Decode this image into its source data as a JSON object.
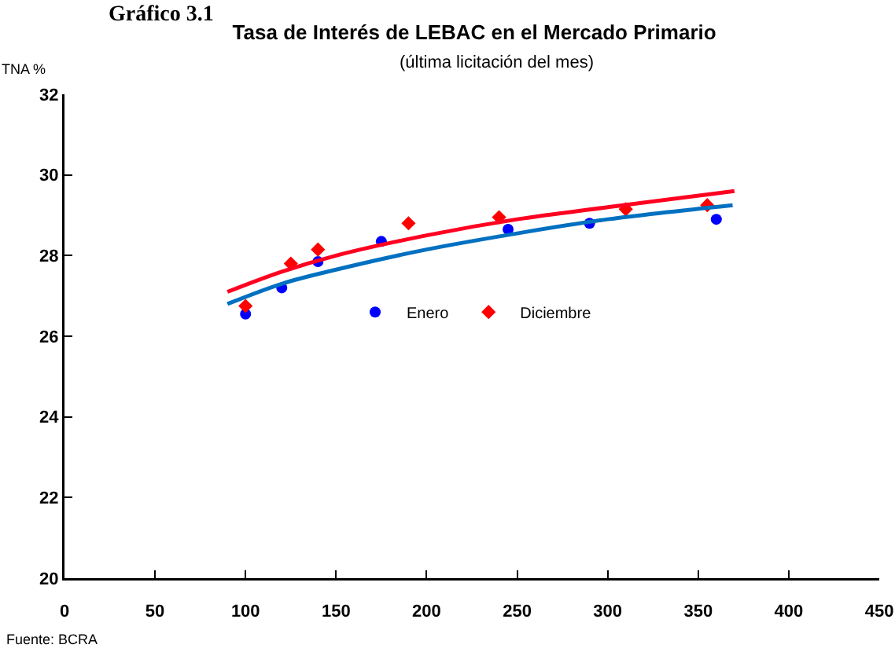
{
  "chart_data": {
    "type": "scatter",
    "title": "Tasa de Interés de LEBAC en el Mercado Primario",
    "subtitle": "(última licitación del mes)",
    "ylabel": "TNA %",
    "annotations": [
      "Gráfico 3.1",
      "Fuente: BCRA"
    ],
    "xlim": [
      0,
      450
    ],
    "xticks": [
      0,
      50,
      100,
      150,
      200,
      250,
      300,
      350,
      400,
      450
    ],
    "ylim": [
      20,
      32
    ],
    "yticks": [
      20,
      22,
      24,
      26,
      28,
      30,
      32
    ],
    "grid": false,
    "legend": "center",
    "series": [
      {
        "name": "Enero",
        "type": "scatter",
        "marker": "circle",
        "color": "#0000ff",
        "x": [
          100,
          120,
          140,
          175,
          245,
          290,
          360
        ],
        "values": [
          26.55,
          27.2,
          27.85,
          28.35,
          28.65,
          28.8,
          28.9
        ]
      },
      {
        "name": "Diciembre",
        "type": "scatter",
        "marker": "diamond",
        "color": "#ff0000",
        "x": [
          100,
          125,
          140,
          190,
          240,
          310,
          355
        ],
        "values": [
          26.75,
          27.8,
          28.15,
          28.8,
          28.95,
          29.15,
          29.25
        ]
      },
      {
        "type": "line",
        "marker": "none",
        "line_style": "solid",
        "color": "#0070c0",
        "x": [
          90,
          120,
          150,
          200,
          250,
          300,
          369
        ],
        "values": [
          26.8,
          27.3,
          27.65,
          28.15,
          28.55,
          28.9,
          29.25
        ]
      },
      {
        "type": "line",
        "marker": "none",
        "line_style": "solid",
        "color": "#ff0020",
        "x": [
          90,
          120,
          150,
          200,
          250,
          300,
          370
        ],
        "values": [
          27.1,
          27.6,
          28.0,
          28.5,
          28.9,
          29.2,
          29.6
        ]
      }
    ]
  }
}
